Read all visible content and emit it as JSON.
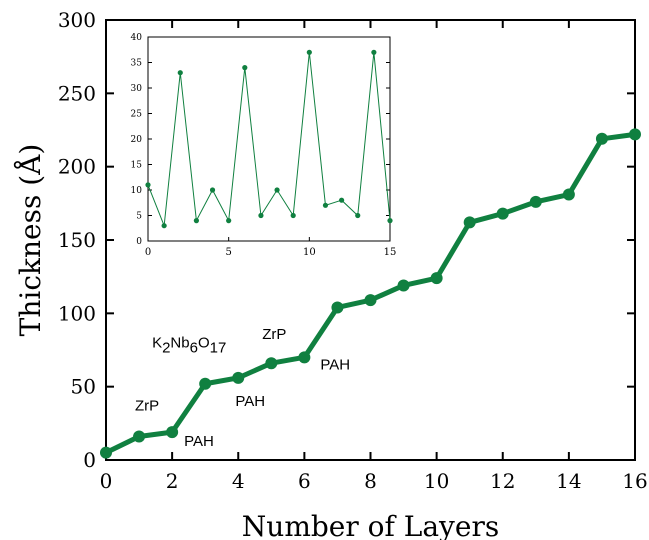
{
  "chart_data": [
    {
      "type": "line",
      "xlabel": "Number of Layers",
      "ylabel": "Thickness (Å)",
      "xlim": [
        0,
        16
      ],
      "ylim": [
        0,
        300
      ],
      "xticks": [
        0,
        2,
        4,
        6,
        8,
        10,
        12,
        14,
        16
      ],
      "yticks": [
        0,
        50,
        100,
        150,
        200,
        250,
        300
      ],
      "grid": false,
      "legend": "none",
      "color": "#108040",
      "series": [
        {
          "x": [
            0,
            1,
            2,
            3,
            4,
            5,
            6,
            7,
            8,
            9,
            10,
            11,
            12,
            13,
            14,
            15,
            16
          ],
          "values": [
            5,
            16,
            19,
            52,
            56,
            66,
            70,
            104,
            109,
            119,
            124,
            162,
            168,
            176,
            181,
            219,
            222
          ]
        }
      ],
      "annotations": [
        {
          "text": "ZrP",
          "x": 1,
          "y": 16
        },
        {
          "text": "PAH",
          "x": 2,
          "y": 19
        },
        {
          "text": "K2Nb6O17",
          "x": 3,
          "y": 52
        },
        {
          "text": "PAH",
          "x": 4,
          "y": 56
        },
        {
          "text": "ZrP",
          "x": 5,
          "y": 66
        },
        {
          "text": "PAH",
          "x": 6,
          "y": 70
        }
      ]
    },
    {
      "type": "line",
      "role": "inset",
      "xlim": [
        0,
        15
      ],
      "ylim": [
        0,
        40
      ],
      "xticks": [
        0,
        5,
        10,
        15
      ],
      "yticks": [
        0,
        5,
        10,
        15,
        20,
        25,
        30,
        35,
        40
      ],
      "grid": false,
      "color": "#108040",
      "series": [
        {
          "x": [
            0,
            1,
            2,
            3,
            4,
            5,
            6,
            7,
            8,
            9,
            10,
            11,
            12,
            13,
            14,
            15
          ],
          "values": [
            11,
            3,
            33,
            4,
            10,
            4,
            34,
            5,
            10,
            5,
            37,
            7,
            8,
            5,
            37,
            4
          ]
        }
      ]
    }
  ]
}
